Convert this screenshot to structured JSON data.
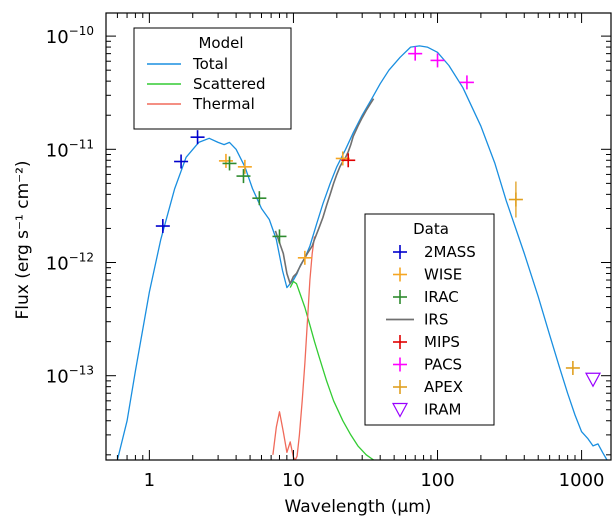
{
  "chart_data": {
    "type": "line",
    "xlabel": "Wavelength (μm)",
    "ylabel": "Flux (erg s⁻¹ cm⁻²)",
    "x_scale": "log",
    "y_scale": "log",
    "xlim": [
      0.5,
      1600
    ],
    "ylim": [
      1.8e-14,
      1.6e-10
    ],
    "x_ticks": [
      {
        "value": 1,
        "label": "1"
      },
      {
        "value": 10,
        "label": "10"
      },
      {
        "value": 100,
        "label": "100"
      },
      {
        "value": 1000,
        "label": "1000"
      }
    ],
    "y_ticks": [
      {
        "value": 1e-13,
        "mantissa": "10",
        "exponent": "−13"
      },
      {
        "value": 1e-12,
        "mantissa": "10",
        "exponent": "−12"
      },
      {
        "value": 1e-11,
        "mantissa": "10",
        "exponent": "−11"
      },
      {
        "value": 1e-10,
        "mantissa": "10",
        "exponent": "−10"
      }
    ],
    "model_legend": {
      "title": "Model",
      "entries": [
        {
          "label": "Total",
          "color": "#1a8fe0"
        },
        {
          "label": "Scattered",
          "color": "#33cc33"
        },
        {
          "label": "Thermal",
          "color": "#f06a5a"
        }
      ]
    },
    "data_legend": {
      "title": "Data",
      "entries": [
        {
          "label": "2MASS",
          "color": "#0000cc",
          "marker": "plus"
        },
        {
          "label": "WISE",
          "color": "#f5a623",
          "marker": "plus"
        },
        {
          "label": "IRAC",
          "color": "#2e8b2e",
          "marker": "plus"
        },
        {
          "label": "IRS",
          "color": "#707070",
          "marker": "line"
        },
        {
          "label": "MIPS",
          "color": "#e00000",
          "marker": "plus"
        },
        {
          "label": "PACS",
          "color": "#ff00ff",
          "marker": "plus"
        },
        {
          "label": "APEX",
          "color": "#e0a020",
          "marker": "plus"
        },
        {
          "label": "IRAM",
          "color": "#9900ff",
          "marker": "triangle-down"
        }
      ]
    },
    "series": [
      {
        "name": "Total",
        "color": "#1a8fe0",
        "x": [
          0.6,
          0.7,
          0.8,
          1.0,
          1.2,
          1.5,
          1.8,
          2.2,
          2.6,
          3.0,
          3.3,
          3.6,
          4.0,
          4.6,
          5.2,
          6.0,
          6.8,
          7.6,
          8.4,
          9.0,
          9.5,
          10.0,
          10.6,
          11.2,
          12.0,
          13.0,
          14.5,
          16,
          18,
          20,
          23,
          26,
          30,
          35,
          40,
          46,
          55,
          65,
          75,
          85,
          100,
          120,
          150,
          200,
          250,
          300,
          400,
          500,
          600,
          700,
          800,
          900,
          1000,
          1100,
          1200,
          1300,
          1400,
          1500
        ],
        "y": [
          1.8e-14,
          4e-14,
          1.1e-13,
          5.5e-13,
          1.6e-12,
          4.5e-12,
          8.5e-12,
          1.15e-11,
          1.25e-11,
          1.15e-11,
          1.1e-11,
          1.15e-11,
          1e-11,
          7e-12,
          4.5e-12,
          3e-12,
          2.4e-12,
          1.6e-12,
          8.5e-13,
          6e-13,
          6.5e-13,
          7e-13,
          8e-13,
          9.5e-13,
          1.1e-12,
          1.4e-12,
          2.2e-12,
          3.3e-12,
          5e-12,
          7e-12,
          1e-11,
          1.4e-11,
          2e-11,
          2.8e-11,
          3.8e-11,
          5e-11,
          6.5e-11,
          8e-11,
          8.2e-11,
          8e-11,
          7.2e-11,
          5.5e-11,
          3.5e-11,
          1.6e-11,
          7.5e-12,
          3.5e-12,
          1.2e-12,
          5e-13,
          2.3e-13,
          1.2e-13,
          7e-14,
          4.5e-14,
          3.2e-14,
          2.8e-14,
          2.4e-14,
          2.5e-14,
          2.1e-14,
          1.8e-14
        ]
      },
      {
        "name": "Scattered",
        "color": "#33cc33",
        "x": [
          9.5,
          10,
          10.5,
          11,
          12,
          13,
          14,
          15,
          17,
          19,
          22,
          25,
          28,
          32,
          36
        ],
        "y": [
          6e-13,
          6.8e-13,
          6.5e-13,
          5.5e-13,
          4e-13,
          2.8e-13,
          2e-13,
          1.5e-13,
          9e-14,
          6e-14,
          4e-14,
          3e-14,
          2.4e-14,
          2e-14,
          1.8e-14
        ]
      },
      {
        "name": "Thermal",
        "color": "#f06a5a",
        "x": [
          7.2,
          7.6,
          8.0,
          8.5,
          9.0,
          9.5,
          10.0,
          10.3,
          10.6,
          11,
          11.5,
          12,
          12.5,
          13,
          13.5,
          14
        ],
        "y": [
          2e-14,
          3.5e-14,
          4.8e-14,
          3.2e-14,
          2.1e-14,
          2.6e-14,
          1.9e-14,
          1.8e-14,
          1.95e-14,
          3e-14,
          6e-14,
          1.3e-13,
          3e-13,
          7e-13,
          1.2e-12,
          1.7e-12
        ]
      },
      {
        "name": "IRS",
        "color": "#707070",
        "x": [
          7.5,
          8,
          8.5,
          9,
          9.5,
          10,
          10.5,
          11,
          11.5,
          12,
          12.5,
          13,
          13.5,
          14,
          15,
          16,
          17,
          18,
          19,
          20,
          21,
          22,
          23,
          24,
          25,
          26,
          28,
          30,
          32,
          34,
          36
        ],
        "y": [
          1.9e-12,
          1.5e-12,
          1.2e-12,
          8e-13,
          6.5e-13,
          7.5e-13,
          8e-13,
          9e-13,
          1e-12,
          1.1e-12,
          1.2e-12,
          1.3e-12,
          1.4e-12,
          1.6e-12,
          2e-12,
          2.5e-12,
          3.2e-12,
          4e-12,
          5e-12,
          6e-12,
          7e-12,
          7.8e-12,
          8.5e-12,
          9.5e-12,
          1.1e-11,
          1.3e-11,
          1.6e-11,
          1.9e-11,
          2.2e-11,
          2.5e-11,
          2.8e-11
        ]
      }
    ],
    "points": [
      {
        "name": "2MASS",
        "color": "#0000cc",
        "marker": "plus",
        "x": [
          1.24,
          1.66,
          2.16
        ],
        "y": [
          2.1e-12,
          7.8e-12,
          1.28e-11
        ]
      },
      {
        "name": "WISE",
        "color": "#f5a623",
        "marker": "plus",
        "x": [
          3.4,
          4.6,
          12,
          22
        ],
        "y": [
          7.9e-12,
          7e-12,
          1.1e-12,
          8.3e-12
        ]
      },
      {
        "name": "IRAC",
        "color": "#2e8b2e",
        "marker": "plus",
        "x": [
          3.6,
          4.5,
          5.8,
          8.0
        ],
        "y": [
          7.5e-12,
          5.8e-12,
          3.7e-12,
          1.7e-12
        ]
      },
      {
        "name": "MIPS",
        "color": "#e00000",
        "marker": "plus",
        "x": [
          24
        ],
        "y": [
          8e-12
        ]
      },
      {
        "name": "PACS",
        "color": "#ff00ff",
        "marker": "plus",
        "x": [
          70,
          100,
          160
        ],
        "y": [
          7e-11,
          6.1e-11,
          3.9e-11
        ]
      },
      {
        "name": "APEX",
        "color": "#e0a020",
        "marker": "plus",
        "x": [
          350,
          870
        ],
        "y": [
          3.6e-12,
          1.17e-13
        ]
      },
      {
        "name": "IRAM",
        "color": "#9900ff",
        "marker": "triangle-down",
        "x": [
          1200
        ],
        "y": [
          9.3e-14
        ]
      }
    ],
    "grid": false
  }
}
